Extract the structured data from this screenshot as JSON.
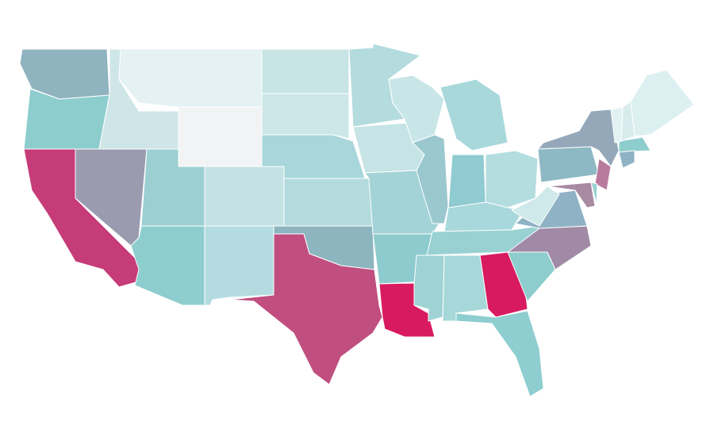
{
  "map": {
    "regions": [
      {
        "color": "#8fb3bf"
      },
      {
        "color": "#8ecdcd"
      },
      {
        "color": "#c63c78"
      },
      {
        "color": "#9b9bb0"
      },
      {
        "color": "#cfe6e8"
      },
      {
        "color": "#e4f2f4"
      },
      {
        "color": "#f1f3f5"
      },
      {
        "color": "#9ccfd1"
      },
      {
        "color": "#8ecdcd"
      },
      {
        "color": "#c4e2e4"
      },
      {
        "color": "#b4dce0"
      },
      {
        "color": "#c8e5e6"
      },
      {
        "color": "#cde7e8"
      },
      {
        "color": "#a8d6da"
      },
      {
        "color": "#b3dbde"
      },
      {
        "color": "#8db5bf"
      },
      {
        "color": "#c04f80"
      },
      {
        "color": "#b4dbde"
      },
      {
        "color": "#c6e4e5"
      },
      {
        "color": "#a3d3d6"
      },
      {
        "color": "#8ecbcf"
      },
      {
        "color": "#d81b60"
      },
      {
        "color": "#c8e6e8"
      },
      {
        "color": "#9bc8cf"
      },
      {
        "color": "#a9d8db"
      },
      {
        "color": "#8fcbd0"
      },
      {
        "color": "#b4dde0"
      },
      {
        "color": "#a8d8db"
      },
      {
        "color": "#99d1d3"
      },
      {
        "color": "#9fd2d4"
      },
      {
        "color": "#a6d7d9"
      },
      {
        "color": "#d81b60"
      },
      {
        "color": "#8ecdd0"
      },
      {
        "color": "#8ecdcd"
      },
      {
        "color": "#a18aa5"
      },
      {
        "color": "#8fb2c4"
      },
      {
        "color": "#cfe9ea"
      },
      {
        "color": "#8db8c4"
      },
      {
        "color": "#94a8ba"
      },
      {
        "color": "#a88aa3"
      },
      {
        "color": "#b87b9e"
      },
      {
        "color": "#9ad0d2"
      },
      {
        "color": "#8ecdcd"
      },
      {
        "color": "#8fb2c4"
      },
      {
        "color": "#e2f1f2"
      },
      {
        "color": "#d8ecee"
      },
      {
        "color": "#ddf0f1"
      }
    ]
  }
}
